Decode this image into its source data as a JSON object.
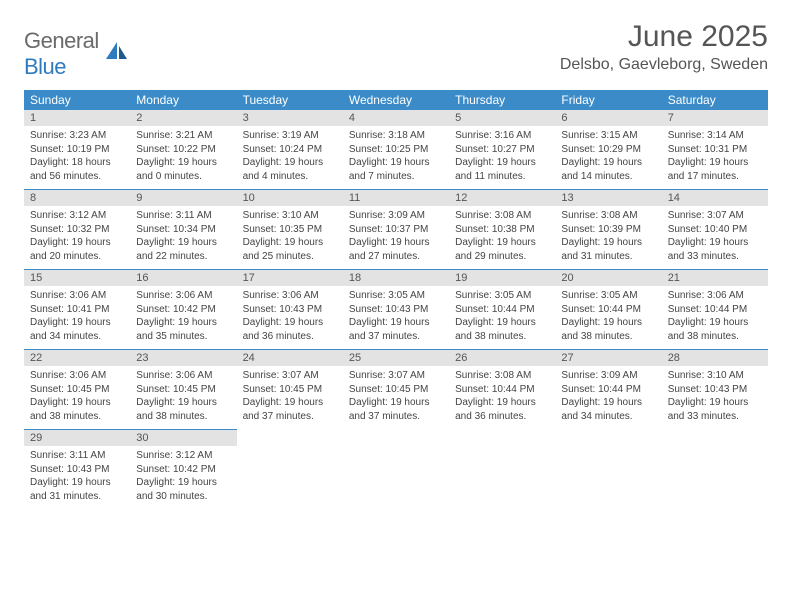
{
  "brand": {
    "line1": "General",
    "line2": "Blue"
  },
  "title": "June 2025",
  "location": "Delsbo, Gaevleborg, Sweden",
  "colors": {
    "header_bg": "#3b8bc8",
    "header_fg": "#ffffff",
    "daynum_bg": "#e3e3e3",
    "rule": "#3b8bc8",
    "brand_gray": "#6a6a6a",
    "brand_blue": "#2f7bbf"
  },
  "weekdays": [
    "Sunday",
    "Monday",
    "Tuesday",
    "Wednesday",
    "Thursday",
    "Friday",
    "Saturday"
  ],
  "days": [
    {
      "n": 1,
      "sr": "3:23 AM",
      "ss": "10:19 PM",
      "dl": "18 hours and 56 minutes."
    },
    {
      "n": 2,
      "sr": "3:21 AM",
      "ss": "10:22 PM",
      "dl": "19 hours and 0 minutes."
    },
    {
      "n": 3,
      "sr": "3:19 AM",
      "ss": "10:24 PM",
      "dl": "19 hours and 4 minutes."
    },
    {
      "n": 4,
      "sr": "3:18 AM",
      "ss": "10:25 PM",
      "dl": "19 hours and 7 minutes."
    },
    {
      "n": 5,
      "sr": "3:16 AM",
      "ss": "10:27 PM",
      "dl": "19 hours and 11 minutes."
    },
    {
      "n": 6,
      "sr": "3:15 AM",
      "ss": "10:29 PM",
      "dl": "19 hours and 14 minutes."
    },
    {
      "n": 7,
      "sr": "3:14 AM",
      "ss": "10:31 PM",
      "dl": "19 hours and 17 minutes."
    },
    {
      "n": 8,
      "sr": "3:12 AM",
      "ss": "10:32 PM",
      "dl": "19 hours and 20 minutes."
    },
    {
      "n": 9,
      "sr": "3:11 AM",
      "ss": "10:34 PM",
      "dl": "19 hours and 22 minutes."
    },
    {
      "n": 10,
      "sr": "3:10 AM",
      "ss": "10:35 PM",
      "dl": "19 hours and 25 minutes."
    },
    {
      "n": 11,
      "sr": "3:09 AM",
      "ss": "10:37 PM",
      "dl": "19 hours and 27 minutes."
    },
    {
      "n": 12,
      "sr": "3:08 AM",
      "ss": "10:38 PM",
      "dl": "19 hours and 29 minutes."
    },
    {
      "n": 13,
      "sr": "3:08 AM",
      "ss": "10:39 PM",
      "dl": "19 hours and 31 minutes."
    },
    {
      "n": 14,
      "sr": "3:07 AM",
      "ss": "10:40 PM",
      "dl": "19 hours and 33 minutes."
    },
    {
      "n": 15,
      "sr": "3:06 AM",
      "ss": "10:41 PM",
      "dl": "19 hours and 34 minutes."
    },
    {
      "n": 16,
      "sr": "3:06 AM",
      "ss": "10:42 PM",
      "dl": "19 hours and 35 minutes."
    },
    {
      "n": 17,
      "sr": "3:06 AM",
      "ss": "10:43 PM",
      "dl": "19 hours and 36 minutes."
    },
    {
      "n": 18,
      "sr": "3:05 AM",
      "ss": "10:43 PM",
      "dl": "19 hours and 37 minutes."
    },
    {
      "n": 19,
      "sr": "3:05 AM",
      "ss": "10:44 PM",
      "dl": "19 hours and 38 minutes."
    },
    {
      "n": 20,
      "sr": "3:05 AM",
      "ss": "10:44 PM",
      "dl": "19 hours and 38 minutes."
    },
    {
      "n": 21,
      "sr": "3:06 AM",
      "ss": "10:44 PM",
      "dl": "19 hours and 38 minutes."
    },
    {
      "n": 22,
      "sr": "3:06 AM",
      "ss": "10:45 PM",
      "dl": "19 hours and 38 minutes."
    },
    {
      "n": 23,
      "sr": "3:06 AM",
      "ss": "10:45 PM",
      "dl": "19 hours and 38 minutes."
    },
    {
      "n": 24,
      "sr": "3:07 AM",
      "ss": "10:45 PM",
      "dl": "19 hours and 37 minutes."
    },
    {
      "n": 25,
      "sr": "3:07 AM",
      "ss": "10:45 PM",
      "dl": "19 hours and 37 minutes."
    },
    {
      "n": 26,
      "sr": "3:08 AM",
      "ss": "10:44 PM",
      "dl": "19 hours and 36 minutes."
    },
    {
      "n": 27,
      "sr": "3:09 AM",
      "ss": "10:44 PM",
      "dl": "19 hours and 34 minutes."
    },
    {
      "n": 28,
      "sr": "3:10 AM",
      "ss": "10:43 PM",
      "dl": "19 hours and 33 minutes."
    },
    {
      "n": 29,
      "sr": "3:11 AM",
      "ss": "10:43 PM",
      "dl": "19 hours and 31 minutes."
    },
    {
      "n": 30,
      "sr": "3:12 AM",
      "ss": "10:42 PM",
      "dl": "19 hours and 30 minutes."
    }
  ],
  "labels": {
    "sunrise": "Sunrise:",
    "sunset": "Sunset:",
    "daylight": "Daylight:"
  }
}
